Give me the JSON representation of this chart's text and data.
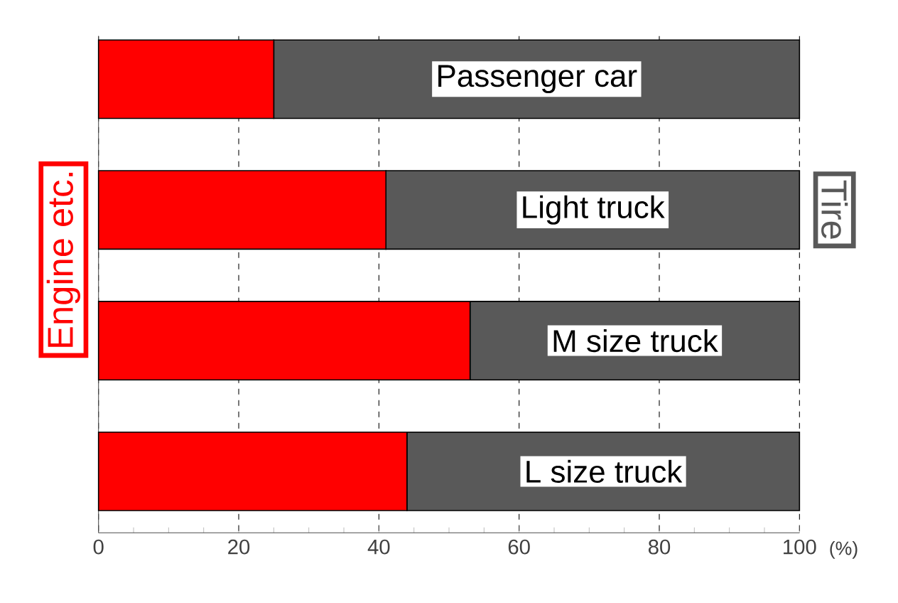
{
  "chart_data": {
    "type": "bar",
    "orientation": "horizontal",
    "stacked": true,
    "categories": [
      "Passenger car",
      "Light truck",
      "M size truck",
      "L size truck"
    ],
    "series": [
      {
        "name": "Engine etc.",
        "color": "#ff0000",
        "values": [
          25,
          41,
          53,
          44
        ]
      },
      {
        "name": "Tire",
        "color": "#595959",
        "values": [
          75,
          59,
          47,
          56
        ]
      }
    ],
    "xlabel": "(%)",
    "xlim": [
      0,
      100
    ],
    "xticks": [
      0,
      20,
      40,
      60,
      80,
      100
    ],
    "grid": "x"
  }
}
